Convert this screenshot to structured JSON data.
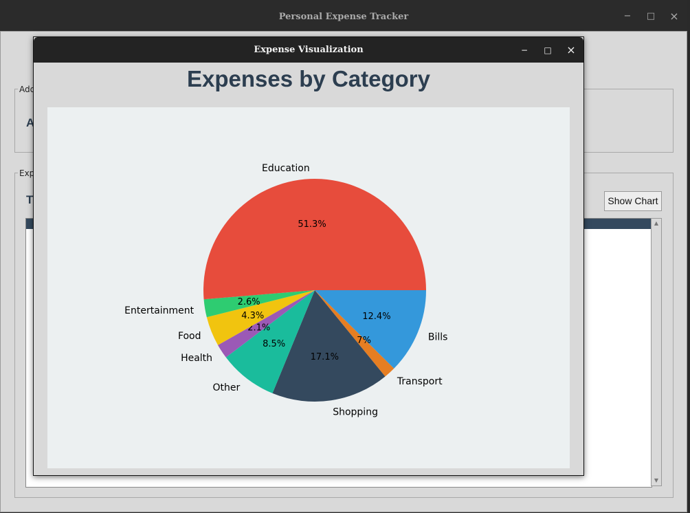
{
  "main_window": {
    "title": "Personal Expense Tracker",
    "controls": {
      "minimize": "−",
      "maximize": "□",
      "close": "×"
    },
    "add_frame": {
      "legend": "Add",
      "header_text": "A"
    },
    "expenses_frame": {
      "legend": "Exp",
      "header_text": "T"
    },
    "show_chart_label": "Show Chart",
    "scroll_up": "▲",
    "scroll_down": "▼"
  },
  "popup": {
    "title": "Expense Visualization",
    "controls": {
      "minimize": "−",
      "maximize": "□",
      "close": "×"
    },
    "heading": "Expenses by Category"
  },
  "chart_data": {
    "type": "pie",
    "title": "Expenses by Category",
    "slices": [
      {
        "label": "Bills",
        "percent": 12.4,
        "value_label": "12.4%",
        "color": "#3498db"
      },
      {
        "label": "Transport",
        "percent": 1.7,
        "value_label": "1.7%",
        "color": "#e67e22"
      },
      {
        "label": "Shopping",
        "percent": 17.1,
        "value_label": "17.1%",
        "color": "#34495e"
      },
      {
        "label": "Other",
        "percent": 8.5,
        "value_label": "8.5%",
        "color": "#1abc9c"
      },
      {
        "label": "Health",
        "percent": 2.1,
        "value_label": "2.1%",
        "color": "#9b59b6"
      },
      {
        "label": "Food",
        "percent": 4.3,
        "value_label": "4.3%",
        "color": "#f1c40f"
      },
      {
        "label": "Entertainment",
        "percent": 2.6,
        "value_label": "2.6%",
        "color": "#2ecc71"
      },
      {
        "label": "Education",
        "percent": 51.3,
        "value_label": "51.3%",
        "color": "#e74c3c"
      }
    ]
  }
}
